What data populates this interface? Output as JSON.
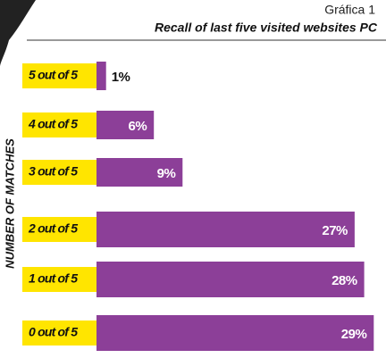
{
  "chart_data": {
    "type": "hbar",
    "label": "Gráfica 1",
    "title": "Recall of last five visited websites PC",
    "y_axis_label": "NUMBER OF MATCHES",
    "categories": [
      "5 out of 5",
      "4 out of 5",
      "3 out of 5",
      "2 out of 5",
      "1 out of 5",
      "0 out of 5"
    ],
    "values": [
      1,
      6,
      9,
      27,
      28,
      29
    ],
    "value_labels": [
      "1%",
      "6%",
      "9%",
      "27%",
      "28%",
      "29%"
    ],
    "color": "#8c3f98",
    "label_color": "#ffe500"
  }
}
